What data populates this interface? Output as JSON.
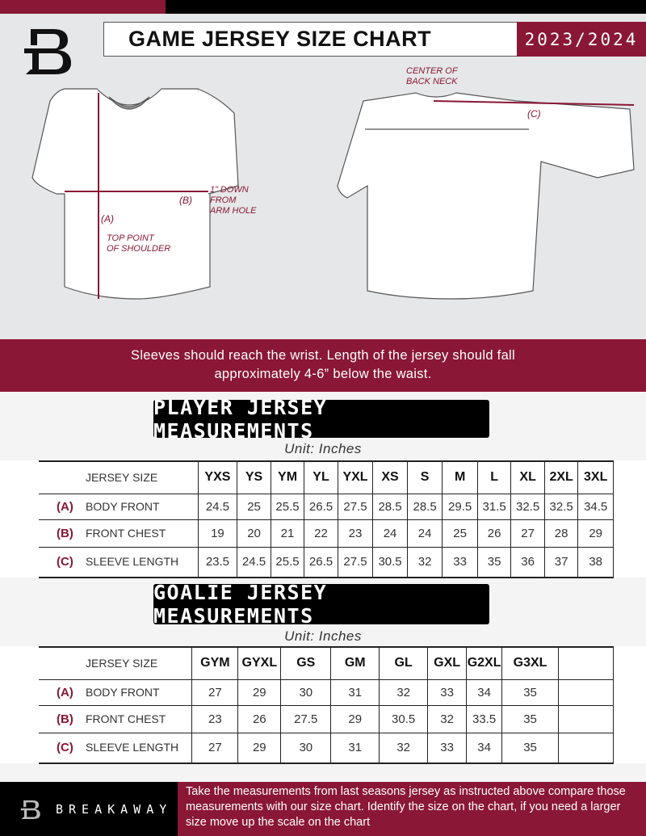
{
  "header": {
    "title": "GAME JERSEY SIZE CHART",
    "season": "2023/2024",
    "brand_color": "#8a1735"
  },
  "diagram": {
    "label_a": "(A)",
    "label_a_desc": [
      "TOP POINT",
      "OF SHOULDER"
    ],
    "label_b": "(B)",
    "label_b_desc": [
      "1” DOWN",
      "FROM",
      "ARM HOLE"
    ],
    "label_c": "(C)",
    "label_c_desc": [
      "CENTER OF",
      "BACK NECK"
    ]
  },
  "band": {
    "line1": "Sleeves should reach the wrist. Length of the jersey should fall",
    "line2": "approximately 4-6” below the waist."
  },
  "player": {
    "title": "PLAYER JERSEY MEASUREMENTS",
    "unit": "Unit: Inches",
    "size_header": "JERSEY SIZE",
    "sizes": [
      "YXS",
      "YS",
      "YM",
      "YL",
      "YXL",
      "XS",
      "S",
      "M",
      "L",
      "XL",
      "2XL",
      "3XL"
    ],
    "rows": [
      {
        "letter": "(A)",
        "label": "BODY FRONT",
        "values": [
          "24.5",
          "25",
          "25.5",
          "26.5",
          "27.5",
          "28.5",
          "28.5",
          "29.5",
          "31.5",
          "32.5",
          "32.5",
          "34.5"
        ]
      },
      {
        "letter": "(B)",
        "label": "FRONT CHEST",
        "values": [
          "19",
          "20",
          "21",
          "22",
          "23",
          "24",
          "24",
          "25",
          "26",
          "27",
          "28",
          "29"
        ]
      },
      {
        "letter": "(C)",
        "label": "SLEEVE LENGTH",
        "values": [
          "23.5",
          "24.5",
          "25.5",
          "26.5",
          "27.5",
          "30.5",
          "32",
          "33",
          "35",
          "36",
          "37",
          "38"
        ]
      }
    ]
  },
  "goalie": {
    "title": "GOALIE JERSEY MEASUREMENTS",
    "unit": "Unit: Inches",
    "size_header": "JERSEY SIZE",
    "sizes": [
      "GYM",
      "GYXL",
      "GS",
      "GM",
      "GL",
      "GXL",
      "G2XL",
      "G3XL",
      ""
    ],
    "rows": [
      {
        "letter": "(A)",
        "label": "BODY FRONT",
        "values": [
          "27",
          "29",
          "30",
          "31",
          "32",
          "33",
          "34",
          "35",
          ""
        ]
      },
      {
        "letter": "(B)",
        "label": "FRONT CHEST",
        "values": [
          "23",
          "26",
          "27.5",
          "29",
          "30.5",
          "32",
          "33.5",
          "35",
          ""
        ]
      },
      {
        "letter": "(C)",
        "label": "SLEEVE LENGTH",
        "values": [
          "27",
          "29",
          "30",
          "31",
          "32",
          "33",
          "34",
          "35",
          ""
        ]
      }
    ]
  },
  "footer": {
    "brand": "BREAKAWAY",
    "text": "Take the measurements from last seasons jersey as instructed above compare those measurements  with our size chart. Identify the size on the chart, if you need a larger size move up the scale on the chart"
  }
}
